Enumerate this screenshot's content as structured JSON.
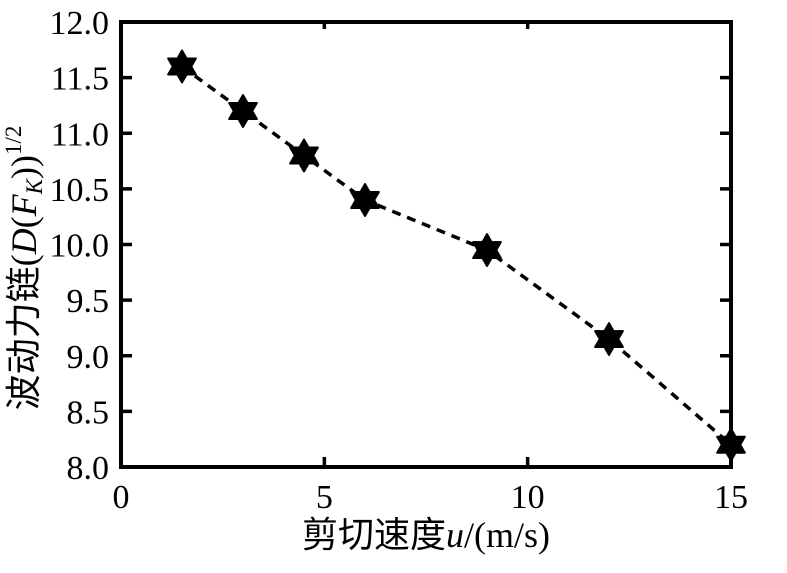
{
  "figure": {
    "background": "#ffffff",
    "ink": "#000000"
  },
  "chart_data": {
    "type": "line",
    "title": "",
    "x": [
      1.5,
      3,
      4.5,
      6,
      9,
      12,
      15
    ],
    "y": [
      11.6,
      11.2,
      10.8,
      10.4,
      9.95,
      9.15,
      8.2
    ],
    "xlabel": "剪切速度u/(m/s)",
    "ylabel": "波动力链(D(FK))1/2",
    "xlabel_parts": [
      {
        "t": "剪切速度",
        "s": "n"
      },
      {
        "t": "u",
        "s": "i"
      },
      {
        "t": "/(m/s)",
        "s": "n"
      }
    ],
    "ylabel_parts": [
      {
        "t": "波动力链(",
        "s": "n"
      },
      {
        "t": "D",
        "s": "i"
      },
      {
        "t": "(",
        "s": "n"
      },
      {
        "t": "F",
        "s": "i"
      },
      {
        "t": "K",
        "s": "isub"
      },
      {
        "t": "))",
        "s": "n"
      },
      {
        "t": "1/2",
        "s": "sup"
      }
    ],
    "xlim": [
      0,
      15
    ],
    "ylim": [
      8.0,
      12.0
    ],
    "xticks": [
      0,
      5,
      10,
      15
    ],
    "xtick_labels": [
      "0",
      "5",
      "10",
      "15"
    ],
    "yticks": [
      12.0,
      11.5,
      11.0,
      10.5,
      10.0,
      9.5,
      9.0,
      8.5,
      8.0
    ],
    "ytick_labels": [
      "12.0",
      "11.5",
      "11.0",
      "10.5",
      "10.0",
      "9.5",
      "9.0",
      "8.5",
      "8.0"
    ],
    "grid": false,
    "legend": false,
    "line_style": "dotted",
    "line_color": "#000000",
    "marker": "six-pointed-star",
    "marker_color": "#000000"
  }
}
